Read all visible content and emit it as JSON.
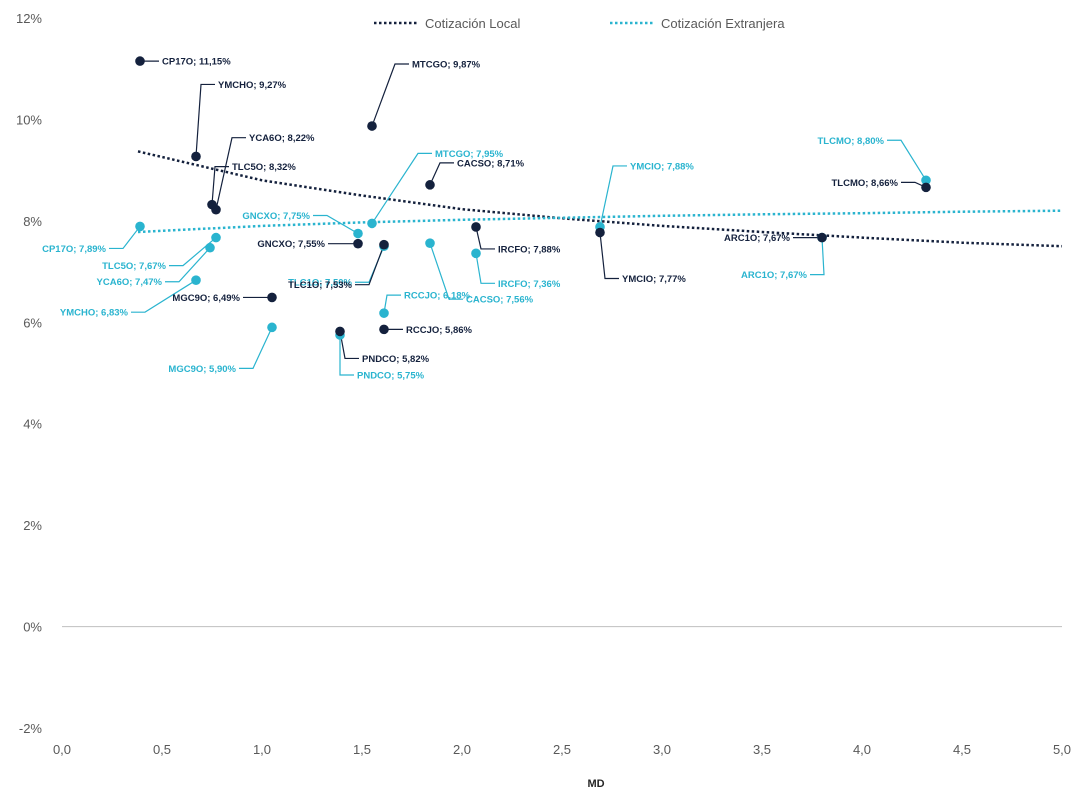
{
  "chart_data": {
    "type": "scatter",
    "xlabel": "MD",
    "ylabel": "",
    "xlim": [
      0,
      5
    ],
    "ylim": [
      -0.02,
      0.12
    ],
    "x_ticks": [
      "0,0",
      "0,5",
      "1,0",
      "1,5",
      "2,0",
      "2,5",
      "3,0",
      "3,5",
      "4,0",
      "4,5",
      "5,0"
    ],
    "y_ticks": [
      "-2%",
      "0%",
      "2%",
      "4%",
      "6%",
      "8%",
      "10%",
      "12%"
    ],
    "legend_position": "top",
    "grid": false,
    "colors": {
      "local": "#14213d",
      "foreign": "#2ab4cf",
      "axis": "#bfbfbf",
      "text": "#595959"
    },
    "series": [
      {
        "name": "Cotización Local",
        "key": "local",
        "points": [
          {
            "x": 0.39,
            "y": 0.1115,
            "label": "CP17O; 11,15%"
          },
          {
            "x": 1.55,
            "y": 0.0987,
            "label": "MTCGO; 9,87%"
          },
          {
            "x": 0.67,
            "y": 0.0927,
            "label": "YMCHO; 9,27%"
          },
          {
            "x": 0.77,
            "y": 0.0822,
            "label": "YCA6O; 8,22%"
          },
          {
            "x": 0.75,
            "y": 0.0832,
            "label": "TLC5O; 8,32%"
          },
          {
            "x": 1.84,
            "y": 0.0871,
            "label": "CACSO; 8,71%"
          },
          {
            "x": 4.32,
            "y": 0.0866,
            "label": "TLCMO; 8,66%"
          },
          {
            "x": 2.07,
            "y": 0.0788,
            "label": "IRCFO; 7,88%"
          },
          {
            "x": 1.48,
            "y": 0.0755,
            "label": "GNCXO; 7,55%"
          },
          {
            "x": 1.61,
            "y": 0.0753,
            "label": "TLC1O; 7,53%"
          },
          {
            "x": 2.69,
            "y": 0.0777,
            "label": "YMCIO; 7,77%"
          },
          {
            "x": 3.8,
            "y": 0.0767,
            "label": "ARC1O; 7,67%"
          },
          {
            "x": 1.05,
            "y": 0.0649,
            "label": "MGC9O; 6,49%"
          },
          {
            "x": 1.61,
            "y": 0.0586,
            "label": "RCCJO; 5,86%"
          },
          {
            "x": 1.39,
            "y": 0.0582,
            "label": "PNDCO; 5,82%"
          }
        ],
        "trend": [
          [
            0.38,
            0.0937
          ],
          [
            1.0,
            0.088
          ],
          [
            1.5,
            0.085
          ],
          [
            2.0,
            0.0823
          ],
          [
            2.5,
            0.0805
          ],
          [
            3.0,
            0.079
          ],
          [
            3.5,
            0.0778
          ],
          [
            4.0,
            0.0767
          ],
          [
            4.5,
            0.0757
          ],
          [
            5.0,
            0.075
          ]
        ]
      },
      {
        "name": "Cotización Extranjera",
        "key": "foreign",
        "points": [
          {
            "x": 0.39,
            "y": 0.0789,
            "label": "CP17O; 7,89%"
          },
          {
            "x": 1.55,
            "y": 0.0795,
            "label": "MTCGO; 7,95%"
          },
          {
            "x": 0.77,
            "y": 0.0767,
            "label": "TLC5O; 7,67%"
          },
          {
            "x": 0.74,
            "y": 0.0747,
            "label": "YCA6O; 7,47%"
          },
          {
            "x": 0.67,
            "y": 0.0683,
            "label": "YMCHO; 6,83%"
          },
          {
            "x": 1.48,
            "y": 0.0775,
            "label": "GNCXO; 7,75%"
          },
          {
            "x": 1.61,
            "y": 0.075,
            "label": "TLC1O; 7,50%"
          },
          {
            "x": 1.84,
            "y": 0.0756,
            "label": "CACSO; 7,56%"
          },
          {
            "x": 2.07,
            "y": 0.0736,
            "label": "IRCFO; 7,36%"
          },
          {
            "x": 2.69,
            "y": 0.0788,
            "label": "YMCIO; 7,88%"
          },
          {
            "x": 4.32,
            "y": 0.088,
            "label": "TLCMO; 8,80%"
          },
          {
            "x": 3.8,
            "y": 0.0767,
            "label": "ARC1O; 7,67%"
          },
          {
            "x": 1.61,
            "y": 0.0618,
            "label": "RCCJO; 6,18%"
          },
          {
            "x": 1.05,
            "y": 0.059,
            "label": "MGC9O; 5,90%"
          },
          {
            "x": 1.39,
            "y": 0.0575,
            "label": "PNDCO; 5,75%"
          }
        ],
        "trend": [
          [
            0.38,
            0.0778
          ],
          [
            1.0,
            0.079
          ],
          [
            1.5,
            0.0797
          ],
          [
            2.0,
            0.0802
          ],
          [
            2.5,
            0.0806
          ],
          [
            3.0,
            0.081
          ],
          [
            3.5,
            0.0813
          ],
          [
            4.0,
            0.0815
          ],
          [
            4.5,
            0.0818
          ],
          [
            5.0,
            0.082
          ]
        ]
      }
    ]
  }
}
